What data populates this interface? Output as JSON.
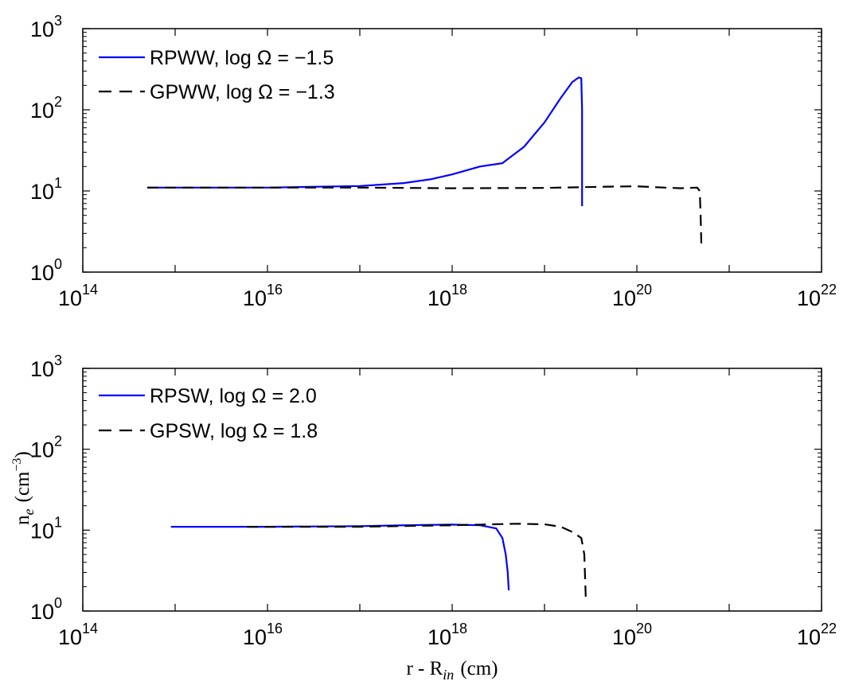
{
  "chart_data": [
    {
      "type": "line",
      "title": "",
      "xscale": "log",
      "yscale": "log",
      "xlim": [
        100000000000000.0,
        1e+22
      ],
      "ylim": [
        1,
        1000
      ],
      "xticks": [
        {
          "value": 100000000000000.0,
          "base": "10",
          "exp": "14"
        },
        {
          "value": 1e+16,
          "base": "10",
          "exp": "16"
        },
        {
          "value": 1e+18,
          "base": "10",
          "exp": "18"
        },
        {
          "value": 1e+20,
          "base": "10",
          "exp": "20"
        },
        {
          "value": 1e+22,
          "base": "10",
          "exp": "22"
        }
      ],
      "yticks": [
        {
          "value": 1,
          "base": "10",
          "exp": "0"
        },
        {
          "value": 10,
          "base": "10",
          "exp": "1"
        },
        {
          "value": 100,
          "base": "10",
          "exp": "2"
        },
        {
          "value": 1000,
          "base": "10",
          "exp": "3"
        }
      ],
      "legend_position": "top-left",
      "series": [
        {
          "name": "RPWW, log Ω = −1.5",
          "color": "#0000ff",
          "style": "solid",
          "points": [
            [
              500000000000000.0,
              11
            ],
            [
              1000000000000000.0,
              11
            ],
            [
              1e+16,
              11
            ],
            [
              1e+17,
              11.5
            ],
            [
              3e+17,
              12.5
            ],
            [
              6e+17,
              14
            ],
            [
              1e+18,
              16
            ],
            [
              2e+18,
              20
            ],
            [
              3.5e+18,
              22
            ],
            [
              6e+18,
              35
            ],
            [
              1e+19,
              70
            ],
            [
              1.5e+19,
              140
            ],
            [
              2e+19,
              220
            ],
            [
              2.35e+19,
              250
            ],
            [
              2.5e+19,
              245
            ],
            [
              2.55e+19,
              100
            ],
            [
              2.55e+19,
              6.5
            ]
          ]
        },
        {
          "name": "GPWW, log Ω = −1.3",
          "color": "#000000",
          "style": "dashed",
          "points": [
            [
              500000000000000.0,
              11
            ],
            [
              1e+16,
              11
            ],
            [
              1e+17,
              11
            ],
            [
              1e+18,
              10.8
            ],
            [
              1e+19,
              10.9
            ],
            [
              5e+19,
              11.3
            ],
            [
              1e+20,
              11.4
            ],
            [
              2e+20,
              11
            ],
            [
              3e+20,
              10.8
            ],
            [
              4.5e+20,
              11
            ],
            [
              4.8e+20,
              10
            ],
            [
              4.9e+20,
              5
            ],
            [
              5e+20,
              2
            ]
          ]
        }
      ]
    },
    {
      "type": "line",
      "title": "",
      "xscale": "log",
      "yscale": "log",
      "xlim": [
        100000000000000.0,
        1e+22
      ],
      "ylim": [
        1,
        1000
      ],
      "ylabel_base": "n",
      "ylabel_sub": "e",
      "ylabel_unit": "(cm",
      "ylabel_sup": "−3",
      "ylabel_close": ")",
      "xlabel_base": "r - R",
      "xlabel_sub": "in",
      "xlabel_unit": "(cm)",
      "xticks": [
        {
          "value": 100000000000000.0,
          "base": "10",
          "exp": "14"
        },
        {
          "value": 1e+16,
          "base": "10",
          "exp": "16"
        },
        {
          "value": 1e+18,
          "base": "10",
          "exp": "18"
        },
        {
          "value": 1e+20,
          "base": "10",
          "exp": "20"
        },
        {
          "value": 1e+22,
          "base": "10",
          "exp": "22"
        }
      ],
      "yticks": [
        {
          "value": 1,
          "base": "10",
          "exp": "0"
        },
        {
          "value": 10,
          "base": "10",
          "exp": "1"
        },
        {
          "value": 100,
          "base": "10",
          "exp": "2"
        },
        {
          "value": 1000,
          "base": "10",
          "exp": "3"
        }
      ],
      "legend_position": "top-left",
      "series": [
        {
          "name": "RPSW, log Ω = 2.0",
          "color": "#0000ff",
          "style": "solid",
          "points": [
            [
              900000000000000.0,
              11
            ],
            [
              1e+16,
              11
            ],
            [
              1e+17,
              11.2
            ],
            [
              5e+17,
              11.6
            ],
            [
              1e+18,
              11.7
            ],
            [
              2e+18,
              11.5
            ],
            [
              3e+18,
              10.5
            ],
            [
              3.5e+18,
              8
            ],
            [
              3.8e+18,
              5
            ],
            [
              4e+18,
              3
            ],
            [
              4.1e+18,
              1.8
            ]
          ]
        },
        {
          "name": "GPSW, log Ω = 1.8",
          "color": "#000000",
          "style": "dashed",
          "points": [
            [
              6000000000000000.0,
              11
            ],
            [
              1e+17,
              11
            ],
            [
              1e+18,
              11.5
            ],
            [
              5e+18,
              12
            ],
            [
              1e+19,
              11.8
            ],
            [
              1.5e+19,
              11
            ],
            [
              2e+19,
              9.5
            ],
            [
              2.5e+19,
              8
            ],
            [
              2.7e+19,
              5
            ],
            [
              2.75e+19,
              2.5
            ],
            [
              2.8e+19,
              1.4
            ]
          ]
        }
      ]
    }
  ]
}
